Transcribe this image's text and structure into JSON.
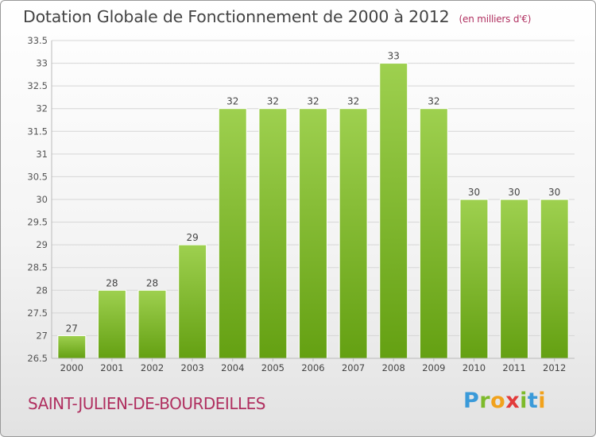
{
  "header": {
    "title": "Dotation Globale de Fonctionnement de 2000 à 2012",
    "unit": "(en milliers d'€)"
  },
  "commune": "SAINT-JULIEN-DE-BOURDEILLES",
  "logo": {
    "letters": [
      "P",
      "r",
      "o",
      "x",
      "i",
      "t",
      "i"
    ]
  },
  "colors": {
    "bar_top": "#9ed04f",
    "bar_bottom": "#64a012",
    "accent": "#b03060"
  },
  "chart_data": {
    "type": "bar",
    "title": "Dotation Globale de Fonctionnement de 2000 à 2012",
    "subtitle": "(en milliers d'€)",
    "categories": [
      "2000",
      "2001",
      "2002",
      "2003",
      "2004",
      "2005",
      "2006",
      "2007",
      "2008",
      "2009",
      "2010",
      "2011",
      "2012"
    ],
    "values": [
      27,
      28,
      28,
      29,
      32,
      32,
      32,
      32,
      33,
      32,
      30,
      30,
      30
    ],
    "value_labels": [
      "27",
      "28",
      "28",
      "29",
      "32",
      "32",
      "32",
      "32",
      "33",
      "32",
      "30",
      "30",
      "30"
    ],
    "ylim": [
      26.5,
      33.5
    ],
    "yticks": [
      "26.5",
      "27",
      "27.5",
      "28",
      "28.5",
      "29",
      "29.5",
      "30",
      "30.5",
      "31",
      "31.5",
      "32",
      "32.5",
      "33",
      "33.5"
    ],
    "grid": true
  }
}
